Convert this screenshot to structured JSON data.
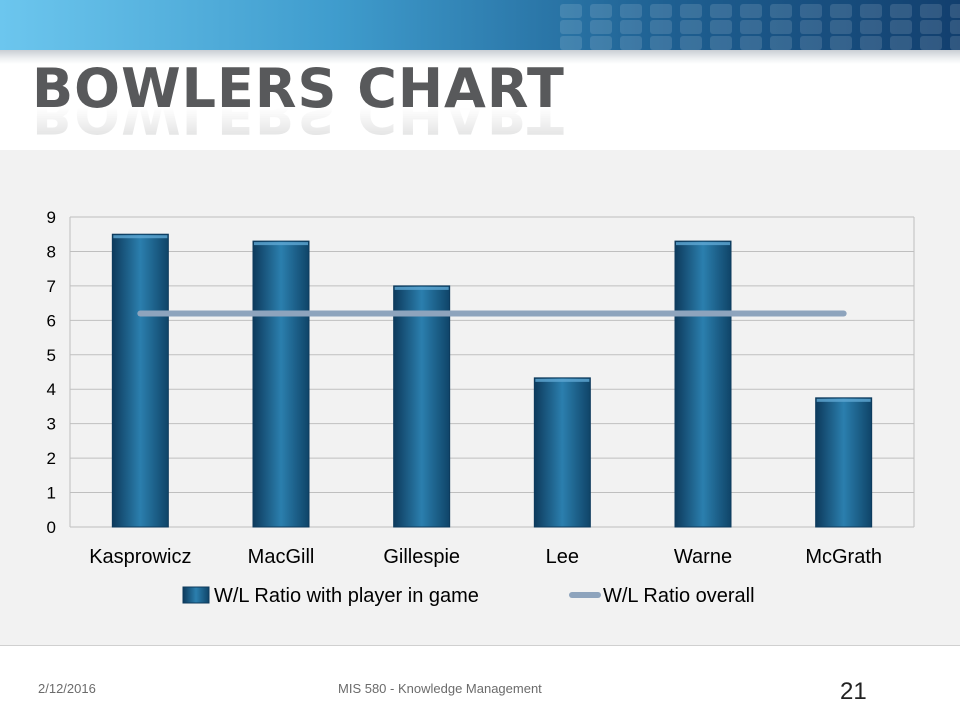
{
  "slide": {
    "title": "BOWLERS CHART",
    "footer_date": "2/12/2016",
    "footer_course": "MIS 580 - Knowledge Management",
    "slide_number": "21"
  },
  "colors": {
    "bar_fill": "#1f6a96",
    "bar_edge": "#0d3a5c",
    "line": "#8ea4bd",
    "grid": "#bfbfbf",
    "background": "#f2f2f2"
  },
  "chart_data": {
    "type": "bar",
    "title": "",
    "xlabel": "",
    "ylabel": "",
    "categories": [
      "Kasprowicz",
      "MacGill",
      "Gillespie",
      "Lee",
      "Warne",
      "McGrath"
    ],
    "y_ticks": [
      "0",
      "1",
      "2",
      "3",
      "4",
      "5",
      "6",
      "7",
      "8",
      "9"
    ],
    "ylim": [
      0,
      9
    ],
    "grid": true,
    "legend_position": "bottom",
    "series": [
      {
        "name": "W/L Ratio with player in game",
        "type": "bar",
        "values": [
          8.5,
          8.3,
          7.0,
          4.33,
          8.3,
          3.75
        ]
      },
      {
        "name": "W/L Ratio overall",
        "type": "line",
        "values": [
          6.2,
          6.2,
          6.2,
          6.2,
          6.2,
          6.2
        ]
      }
    ]
  }
}
